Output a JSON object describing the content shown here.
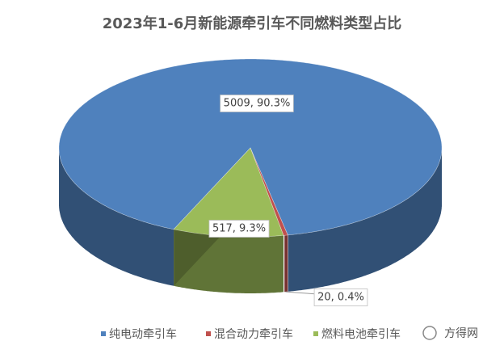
{
  "chart_data": {
    "type": "pie3d",
    "title": "2023年1-6月新能源牵引车不同燃料类型占比",
    "categories": [
      "纯电动牵引车",
      "混合动力牵引车",
      "燃料电池牵引车"
    ],
    "values": [
      5009,
      20,
      517
    ],
    "value_labels": [
      "5009, 90.3%",
      "20, 0.4%",
      "517, 9.3%"
    ],
    "colors": [
      "#4f81bd",
      "#c0504d",
      "#9bbb59"
    ],
    "legend": "bottom",
    "watermark": "方得网"
  }
}
